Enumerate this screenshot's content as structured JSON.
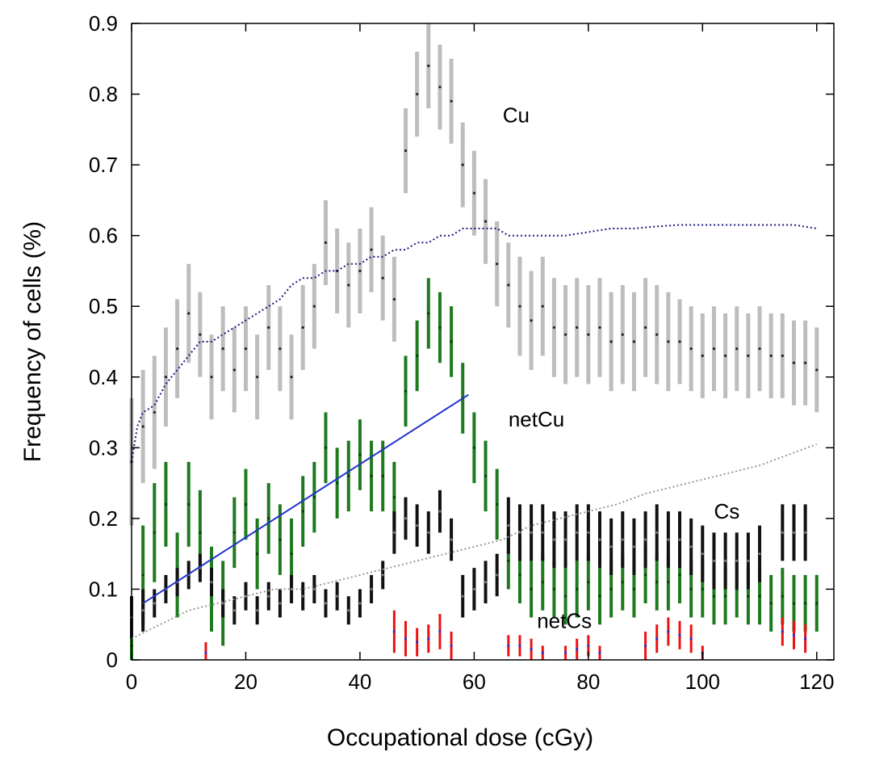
{
  "chart_data": {
    "type": "scatter",
    "xlabel": "Occupational dose (cGy)",
    "ylabel": "Frequency of cells (%)",
    "xlim": [
      0,
      123
    ],
    "ylim": [
      0,
      0.9
    ],
    "x_ticks": [
      0,
      20,
      40,
      60,
      80,
      100,
      120
    ],
    "y_ticks": [
      0,
      0.1,
      0.2,
      0.3,
      0.4,
      0.5,
      0.6,
      0.7,
      0.8,
      0.9
    ],
    "x_tick_labels": [
      "0",
      "20",
      "40",
      "60",
      "80",
      "100",
      "120"
    ],
    "y_tick_labels": [
      "0",
      "0.1",
      "0.2",
      "0.3",
      "0.4",
      "0.5",
      "0.6",
      "0.7",
      "0.8",
      "0.9"
    ],
    "grid": false,
    "colors": {
      "Cu": "#bdbdbd",
      "Cu_point": "#222222",
      "netCu": "#1f7a1f",
      "Cs": "#111111",
      "netCs": "#ee1111",
      "Cu_cumulative": "#1a1a80",
      "Cs_cumulative": "#999999",
      "fit": "#2233cc"
    },
    "series": [
      {
        "name": "Cu",
        "label_at": [
          65,
          0.76
        ],
        "x": [
          0,
          2,
          4,
          6,
          8,
          10,
          12,
          14,
          16,
          18,
          20,
          22,
          24,
          26,
          28,
          30,
          32,
          34,
          36,
          38,
          40,
          42,
          44,
          46,
          48,
          50,
          52,
          54,
          56,
          58,
          60,
          62,
          64,
          66,
          68,
          70,
          72,
          74,
          76,
          78,
          80,
          82,
          84,
          86,
          88,
          90,
          92,
          94,
          96,
          98,
          100,
          102,
          104,
          106,
          108,
          110,
          112,
          114,
          116,
          118,
          120
        ],
        "y": [
          0.28,
          0.33,
          0.35,
          0.4,
          0.44,
          0.49,
          0.46,
          0.4,
          0.44,
          0.41,
          0.44,
          0.4,
          0.47,
          0.44,
          0.4,
          0.47,
          0.5,
          0.59,
          0.55,
          0.53,
          0.55,
          0.58,
          0.54,
          0.51,
          0.72,
          0.8,
          0.84,
          0.81,
          0.79,
          0.7,
          0.66,
          0.62,
          0.56,
          0.53,
          0.5,
          0.48,
          0.5,
          0.47,
          0.46,
          0.47,
          0.46,
          0.47,
          0.45,
          0.46,
          0.45,
          0.47,
          0.46,
          0.45,
          0.45,
          0.44,
          0.43,
          0.44,
          0.43,
          0.44,
          0.43,
          0.44,
          0.43,
          0.43,
          0.42,
          0.42,
          0.41
        ],
        "err": [
          0.09,
          0.08,
          0.08,
          0.07,
          0.07,
          0.07,
          0.06,
          0.06,
          0.06,
          0.06,
          0.06,
          0.06,
          0.06,
          0.06,
          0.06,
          0.06,
          0.06,
          0.06,
          0.06,
          0.06,
          0.06,
          0.06,
          0.06,
          0.06,
          0.06,
          0.06,
          0.06,
          0.06,
          0.06,
          0.06,
          0.06,
          0.06,
          0.06,
          0.06,
          0.07,
          0.07,
          0.07,
          0.07,
          0.07,
          0.07,
          0.07,
          0.07,
          0.07,
          0.07,
          0.07,
          0.07,
          0.07,
          0.07,
          0.06,
          0.06,
          0.06,
          0.06,
          0.06,
          0.06,
          0.06,
          0.06,
          0.06,
          0.06,
          0.06,
          0.06,
          0.06
        ]
      },
      {
        "name": "netCu",
        "label_at": [
          66,
          0.33
        ],
        "x": [
          0,
          2,
          4,
          6,
          8,
          10,
          12,
          14,
          16,
          18,
          20,
          22,
          24,
          26,
          28,
          30,
          32,
          34,
          36,
          38,
          40,
          42,
          44,
          46,
          48,
          50,
          52,
          54,
          56,
          58,
          60,
          62,
          64,
          66,
          68,
          70,
          72,
          74,
          76,
          78,
          80,
          82,
          84,
          86,
          88,
          90,
          92,
          94,
          96,
          98,
          100,
          102,
          104,
          106,
          108,
          110,
          112,
          114,
          116,
          118,
          120
        ],
        "y": [
          0.02,
          0.12,
          0.18,
          0.22,
          0.12,
          0.22,
          0.18,
          0.1,
          0.08,
          0.18,
          0.22,
          0.15,
          0.2,
          0.17,
          0.15,
          0.21,
          0.23,
          0.3,
          0.25,
          0.26,
          0.29,
          0.26,
          0.26,
          0.23,
          0.38,
          0.43,
          0.49,
          0.47,
          0.45,
          0.37,
          0.3,
          0.26,
          0.22,
          0.14,
          0.12,
          0.1,
          0.11,
          0.1,
          0.09,
          0.1,
          0.11,
          0.09,
          0.1,
          0.11,
          0.1,
          0.12,
          0.11,
          0.11,
          0.12,
          0.1,
          0.1,
          0.09,
          0.09,
          0.1,
          0.09,
          0.09,
          0.08,
          0.09,
          0.08,
          0.08,
          0.08
        ],
        "err": [
          0.07,
          0.07,
          0.07,
          0.06,
          0.06,
          0.06,
          0.06,
          0.06,
          0.06,
          0.05,
          0.05,
          0.05,
          0.05,
          0.05,
          0.05,
          0.05,
          0.05,
          0.05,
          0.05,
          0.05,
          0.05,
          0.05,
          0.05,
          0.05,
          0.05,
          0.05,
          0.05,
          0.05,
          0.05,
          0.05,
          0.05,
          0.05,
          0.05,
          0.04,
          0.04,
          0.04,
          0.04,
          0.04,
          0.04,
          0.04,
          0.04,
          0.04,
          0.04,
          0.04,
          0.04,
          0.04,
          0.04,
          0.04,
          0.04,
          0.04,
          0.04,
          0.04,
          0.04,
          0.04,
          0.04,
          0.04,
          0.04,
          0.04,
          0.04,
          0.04,
          0.04
        ]
      },
      {
        "name": "Cs",
        "label_at": [
          102,
          0.2
        ],
        "x": [
          0,
          2,
          4,
          6,
          8,
          10,
          12,
          14,
          16,
          18,
          20,
          22,
          24,
          26,
          28,
          30,
          32,
          34,
          36,
          38,
          40,
          42,
          44,
          46,
          48,
          50,
          52,
          54,
          56,
          58,
          60,
          62,
          64,
          66,
          68,
          70,
          72,
          74,
          76,
          78,
          80,
          82,
          84,
          86,
          88,
          90,
          92,
          94,
          96,
          98,
          100,
          102,
          104,
          106,
          108,
          110,
          114,
          116,
          118
        ],
        "y": [
          0.06,
          0.07,
          0.08,
          0.1,
          0.11,
          0.12,
          0.13,
          0.11,
          0.08,
          0.07,
          0.09,
          0.07,
          0.09,
          0.08,
          0.1,
          0.09,
          0.1,
          0.08,
          0.09,
          0.07,
          0.08,
          0.1,
          0.12,
          0.18,
          0.2,
          0.19,
          0.18,
          0.21,
          0.17,
          0.09,
          0.1,
          0.11,
          0.12,
          0.19,
          0.18,
          0.18,
          0.18,
          0.17,
          0.17,
          0.18,
          0.18,
          0.17,
          0.16,
          0.17,
          0.16,
          0.17,
          0.18,
          0.17,
          0.17,
          0.16,
          0.15,
          0.14,
          0.14,
          0.14,
          0.14,
          0.15,
          0.18,
          0.18,
          0.18
        ],
        "err": [
          0.03,
          0.03,
          0.02,
          0.02,
          0.02,
          0.02,
          0.02,
          0.02,
          0.02,
          0.02,
          0.02,
          0.02,
          0.02,
          0.02,
          0.02,
          0.02,
          0.02,
          0.02,
          0.02,
          0.02,
          0.02,
          0.02,
          0.02,
          0.03,
          0.03,
          0.03,
          0.03,
          0.03,
          0.03,
          0.03,
          0.03,
          0.03,
          0.03,
          0.04,
          0.04,
          0.04,
          0.04,
          0.04,
          0.04,
          0.04,
          0.04,
          0.04,
          0.04,
          0.04,
          0.04,
          0.04,
          0.04,
          0.04,
          0.04,
          0.04,
          0.04,
          0.04,
          0.04,
          0.04,
          0.04,
          0.04,
          0.04,
          0.04,
          0.04
        ]
      },
      {
        "name": "netCs",
        "label_at": [
          71,
          0.045
        ],
        "x": [
          13,
          46,
          48,
          50,
          52,
          54,
          56,
          66,
          68,
          70,
          72,
          76,
          78,
          80,
          82,
          90,
          92,
          94,
          96,
          98,
          100,
          114,
          116,
          118
        ],
        "y": [
          0.01,
          0.04,
          0.03,
          0.025,
          0.03,
          0.04,
          0.02,
          0.02,
          0.02,
          0.015,
          0.01,
          0.01,
          0.015,
          0.02,
          0.01,
          0.02,
          0.03,
          0.04,
          0.035,
          0.03,
          0.01,
          0.04,
          0.035,
          0.03
        ],
        "err": [
          0.015,
          0.03,
          0.025,
          0.02,
          0.02,
          0.025,
          0.02,
          0.015,
          0.015,
          0.015,
          0.01,
          0.01,
          0.015,
          0.015,
          0.01,
          0.02,
          0.02,
          0.02,
          0.02,
          0.02,
          0.01,
          0.02,
          0.02,
          0.02
        ]
      }
    ],
    "cumulative": [
      {
        "of": "Cu",
        "x": [
          0,
          1,
          2,
          4,
          6,
          8,
          10,
          12,
          14,
          16,
          18,
          20,
          22,
          24,
          26,
          28,
          30,
          32,
          34,
          36,
          38,
          40,
          42,
          44,
          46,
          48,
          50,
          52,
          54,
          56,
          58,
          60,
          62,
          64,
          66,
          68,
          70,
          72,
          76,
          80,
          84,
          88,
          92,
          96,
          100,
          104,
          108,
          112,
          116,
          120
        ],
        "y": [
          0.28,
          0.33,
          0.35,
          0.36,
          0.39,
          0.41,
          0.43,
          0.45,
          0.45,
          0.46,
          0.47,
          0.48,
          0.49,
          0.5,
          0.51,
          0.53,
          0.54,
          0.54,
          0.55,
          0.55,
          0.56,
          0.56,
          0.57,
          0.57,
          0.58,
          0.58,
          0.59,
          0.59,
          0.6,
          0.6,
          0.61,
          0.61,
          0.61,
          0.61,
          0.6,
          0.6,
          0.6,
          0.6,
          0.6,
          0.605,
          0.61,
          0.61,
          0.613,
          0.615,
          0.615,
          0.615,
          0.615,
          0.615,
          0.615,
          0.61
        ]
      },
      {
        "of": "Cs",
        "x": [
          0,
          5,
          10,
          15,
          20,
          25,
          30,
          35,
          40,
          45,
          50,
          55,
          60,
          65,
          70,
          75,
          80,
          85,
          90,
          95,
          100,
          105,
          110,
          115,
          120
        ],
        "y": [
          0.03,
          0.05,
          0.07,
          0.08,
          0.09,
          0.1,
          0.1,
          0.11,
          0.12,
          0.13,
          0.14,
          0.15,
          0.16,
          0.17,
          0.19,
          0.2,
          0.21,
          0.22,
          0.235,
          0.245,
          0.255,
          0.265,
          0.275,
          0.29,
          0.305
        ]
      }
    ],
    "fit_line": {
      "x": [
        2,
        59
      ],
      "y": [
        0.08,
        0.375
      ]
    }
  }
}
